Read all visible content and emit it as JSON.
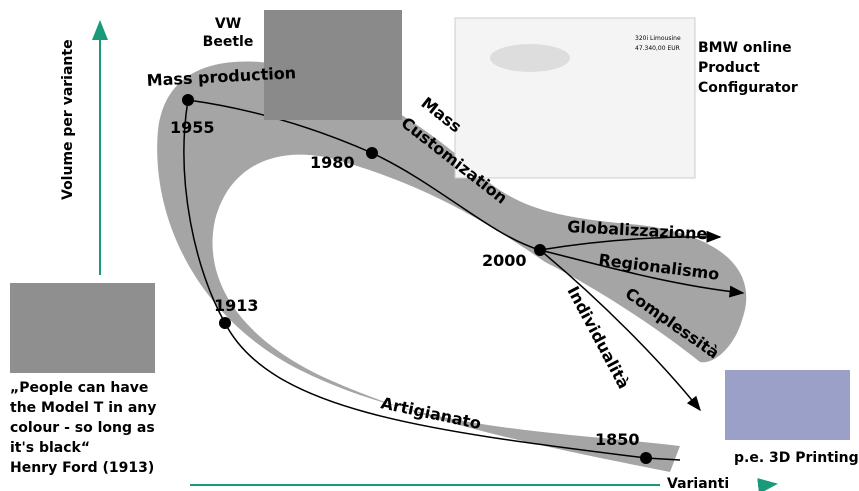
{
  "axes": {
    "y_label": "Volume per variante",
    "x_label": "Varianti"
  },
  "path_labels": {
    "mass_production": "Mass production",
    "mass_customization": [
      "Mass",
      "Customization"
    ],
    "artigianato": "Artigianato"
  },
  "years": [
    "1955",
    "1980",
    "2000",
    "1913",
    "1850"
  ],
  "branches": [
    "Globalizzazione",
    "Regionalismo",
    "Complessità",
    "Individualità"
  ],
  "photos": {
    "vw": [
      "VW",
      "Beetle"
    ],
    "bmw": [
      "BMW online",
      "Product",
      "Configurator"
    ],
    "bmw_screen": [
      "320i Limousine",
      "47.340,00 EUR"
    ],
    "model_t_quote": [
      "„People can have",
      "the Model T in any",
      "colour - so long as",
      "it's black“",
      "Henry Ford (1913)"
    ],
    "printing": "p.e. 3D Printing"
  }
}
